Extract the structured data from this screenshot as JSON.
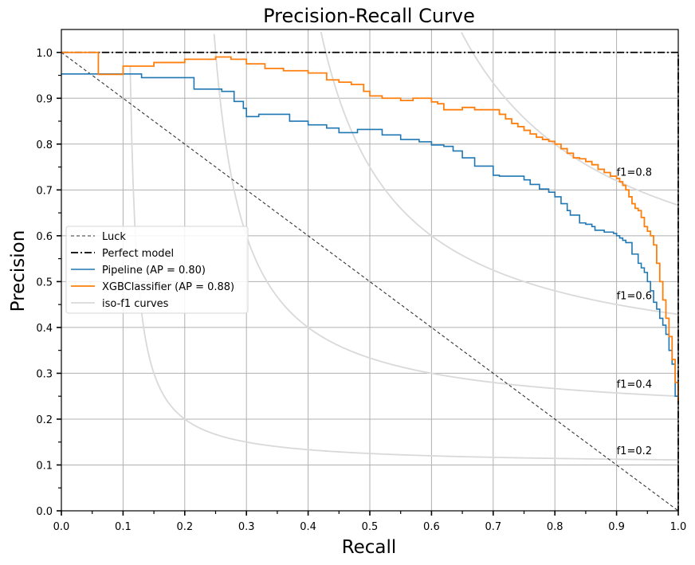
{
  "chart_data": {
    "type": "line",
    "title": "Precision-Recall Curve",
    "xlabel": "Recall",
    "ylabel": "Precision",
    "xlim": [
      0,
      1
    ],
    "ylim": [
      0,
      1.05
    ],
    "grid": true,
    "x_ticks": [
      "0.0",
      "0.1",
      "0.2",
      "0.3",
      "0.4",
      "0.5",
      "0.6",
      "0.7",
      "0.8",
      "0.9",
      "1.0"
    ],
    "y_ticks": [
      "0.0",
      "0.1",
      "0.2",
      "0.3",
      "0.4",
      "0.5",
      "0.6",
      "0.7",
      "0.8",
      "0.9",
      "1.0"
    ],
    "legend_position": "center-left",
    "legend": [
      "Luck",
      "Perfect model",
      "Pipeline (AP = 0.80)",
      "XGBClassifier (AP = 0.88)",
      "iso-f1 curves"
    ],
    "iso_f1": {
      "levels": [
        0.2,
        0.4,
        0.6,
        0.8
      ],
      "labels": [
        "f1=0.2",
        "f1=0.4",
        "f1=0.6",
        "f1=0.8"
      ],
      "label_x": 0.9
    },
    "colors": {
      "luck": "#333333",
      "perfect": "#000000",
      "pipeline": "#1f77b4",
      "xgb": "#ff7f0e",
      "iso": "#d9d9d9",
      "grid": "#b0b0b0"
    },
    "series": [
      {
        "name": "Luck",
        "style": "dashed",
        "x": [
          0,
          1
        ],
        "y": [
          1,
          0
        ]
      },
      {
        "name": "Perfect model",
        "style": "dashdot",
        "x": [
          0,
          1,
          1
        ],
        "y": [
          1,
          1,
          0
        ]
      },
      {
        "name": "Pipeline (AP = 0.80)",
        "style": "step",
        "x": [
          0,
          0.06,
          0.13,
          0.215,
          0.26,
          0.28,
          0.295,
          0.3,
          0.32,
          0.37,
          0.4,
          0.43,
          0.45,
          0.48,
          0.52,
          0.55,
          0.58,
          0.6,
          0.62,
          0.635,
          0.65,
          0.67,
          0.7,
          0.71,
          0.75,
          0.76,
          0.775,
          0.79,
          0.8,
          0.81,
          0.82,
          0.825,
          0.84,
          0.85,
          0.86,
          0.865,
          0.88,
          0.895,
          0.9,
          0.905,
          0.91,
          0.915,
          0.925,
          0.935,
          0.94,
          0.945,
          0.95,
          0.955,
          0.96,
          0.965,
          0.97,
          0.975,
          0.98,
          0.985,
          0.99,
          0.995,
          1.0
        ],
        "y": [
          0.953,
          0.953,
          0.945,
          0.92,
          0.915,
          0.893,
          0.878,
          0.86,
          0.865,
          0.85,
          0.842,
          0.835,
          0.825,
          0.832,
          0.82,
          0.81,
          0.805,
          0.798,
          0.795,
          0.785,
          0.77,
          0.752,
          0.732,
          0.73,
          0.722,
          0.712,
          0.702,
          0.695,
          0.685,
          0.67,
          0.655,
          0.645,
          0.628,
          0.625,
          0.62,
          0.612,
          0.608,
          0.605,
          0.6,
          0.595,
          0.59,
          0.585,
          0.56,
          0.54,
          0.53,
          0.52,
          0.5,
          0.48,
          0.455,
          0.44,
          0.42,
          0.405,
          0.385,
          0.35,
          0.32,
          0.25,
          0.25
        ]
      },
      {
        "name": "XGBClassifier (AP = 0.88)",
        "style": "step",
        "x": [
          0,
          0.06,
          0.06,
          0.1,
          0.15,
          0.2,
          0.25,
          0.275,
          0.3,
          0.33,
          0.36,
          0.4,
          0.43,
          0.45,
          0.47,
          0.49,
          0.5,
          0.52,
          0.55,
          0.57,
          0.6,
          0.61,
          0.62,
          0.65,
          0.67,
          0.7,
          0.71,
          0.72,
          0.73,
          0.74,
          0.75,
          0.76,
          0.77,
          0.78,
          0.79,
          0.8,
          0.81,
          0.82,
          0.83,
          0.84,
          0.85,
          0.86,
          0.87,
          0.88,
          0.89,
          0.9,
          0.905,
          0.91,
          0.915,
          0.92,
          0.925,
          0.93,
          0.935,
          0.94,
          0.945,
          0.95,
          0.955,
          0.96,
          0.965,
          0.97,
          0.975,
          0.98,
          0.985,
          0.99,
          0.995,
          1.0
        ],
        "y": [
          1.0,
          1.0,
          0.952,
          0.97,
          0.978,
          0.985,
          0.99,
          0.985,
          0.975,
          0.965,
          0.96,
          0.955,
          0.94,
          0.935,
          0.93,
          0.915,
          0.905,
          0.9,
          0.895,
          0.9,
          0.892,
          0.888,
          0.875,
          0.88,
          0.875,
          0.875,
          0.865,
          0.855,
          0.845,
          0.838,
          0.83,
          0.822,
          0.815,
          0.81,
          0.806,
          0.8,
          0.79,
          0.78,
          0.77,
          0.768,
          0.762,
          0.755,
          0.745,
          0.738,
          0.73,
          0.725,
          0.718,
          0.71,
          0.7,
          0.685,
          0.67,
          0.66,
          0.655,
          0.64,
          0.62,
          0.61,
          0.6,
          0.58,
          0.54,
          0.5,
          0.46,
          0.42,
          0.38,
          0.33,
          0.28,
          0.24
        ]
      }
    ]
  }
}
